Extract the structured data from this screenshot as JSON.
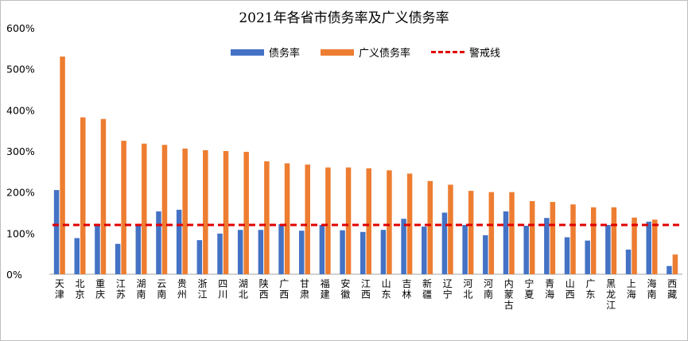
{
  "chart_data": {
    "type": "bar",
    "title": "2021年各省市债务率及广义债务率",
    "xlabel": "",
    "ylabel": "",
    "ylim": [
      0,
      600
    ],
    "y_ticks": [
      "0%",
      "100%",
      "200%",
      "300%",
      "400%",
      "500%",
      "600%"
    ],
    "grid": false,
    "legend_position": "top",
    "categories": [
      "天津",
      "北京",
      "重庆",
      "江苏",
      "湖南",
      "云南",
      "贵州",
      "浙江",
      "四川",
      "湖北",
      "陕西",
      "广西",
      "甘肃",
      "福建",
      "安徽",
      "江西",
      "山东",
      "吉林",
      "新疆",
      "辽宁",
      "河北",
      "河南",
      "内蒙古",
      "宁夏",
      "青海",
      "山西",
      "广东",
      "黑龙江",
      "上海",
      "海南",
      "西藏"
    ],
    "series": [
      {
        "name": "债务率",
        "color": "#4472C4",
        "values": [
          205,
          88,
          122,
          74,
          120,
          153,
          157,
          83,
          99,
          108,
          108,
          122,
          106,
          120,
          107,
          103,
          108,
          135,
          116,
          150,
          120,
          95,
          153,
          118,
          137,
          90,
          82,
          120,
          60,
          128,
          20
        ]
      },
      {
        "name": "广义债务率",
        "color": "#ED7D31",
        "values": [
          530,
          382,
          378,
          325,
          318,
          315,
          306,
          302,
          300,
          298,
          275,
          270,
          267,
          260,
          260,
          258,
          253,
          245,
          227,
          218,
          203,
          200,
          200,
          178,
          176,
          170,
          163,
          163,
          138,
          133,
          48
        ]
      }
    ],
    "reference_line": {
      "name": "警戒线",
      "value": 120,
      "color": "#E00000"
    }
  }
}
